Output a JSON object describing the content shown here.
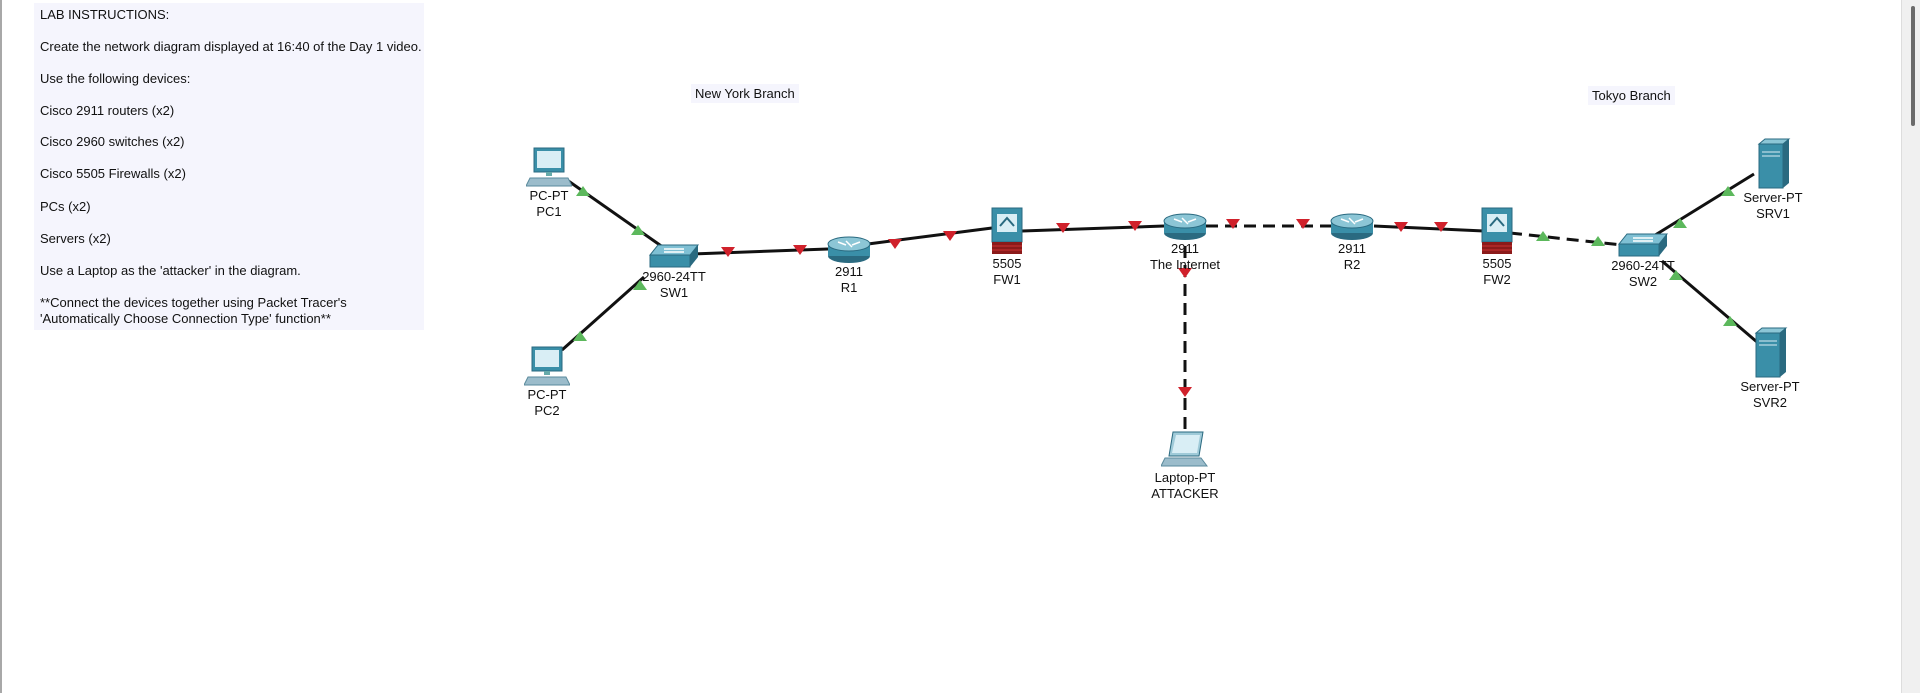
{
  "note": {
    "lines": [
      "LAB INSTRUCTIONS:",
      "Create the network diagram displayed at 16:40 of the Day 1 video.",
      "Use the following devices:",
      "Cisco 2911 routers (x2)",
      "Cisco 2960 switches (x2)",
      "Cisco 5505 Firewalls (x2)",
      "PCs (x2)",
      "Servers (x2)",
      "Use a Laptop as the 'attacker' in the diagram.",
      "**Connect the devices together using Packet Tracer's",
      "'Automatically Choose Connection Type' function**"
    ]
  },
  "branches": {
    "new_york": "New York Branch",
    "tokyo": "Tokyo Branch"
  },
  "devices": {
    "pc1": {
      "model": "PC-PT",
      "name": "PC1"
    },
    "pc2": {
      "model": "PC-PT",
      "name": "PC2"
    },
    "sw1": {
      "model": "2960-24TT",
      "name": "SW1"
    },
    "r1": {
      "model": "2911",
      "name": "R1"
    },
    "fw1": {
      "model": "5505",
      "name": "FW1"
    },
    "internet": {
      "model": "2911",
      "name": "The Internet"
    },
    "r2": {
      "model": "2911",
      "name": "R2"
    },
    "fw2": {
      "model": "5505",
      "name": "FW2"
    },
    "sw2": {
      "model": "2960-24TT",
      "name": "SW2"
    },
    "srv1": {
      "model": "Server-PT",
      "name": "SRV1"
    },
    "svr2": {
      "model": "Server-PT",
      "name": "SVR2"
    },
    "attacker": {
      "model": "Laptop-PT",
      "name": "ATTACKER"
    }
  },
  "links": [
    {
      "from": "pc1",
      "to": "sw1",
      "style": "solid",
      "status": "up"
    },
    {
      "from": "pc2",
      "to": "sw1",
      "style": "solid",
      "status": "up"
    },
    {
      "from": "sw1",
      "to": "r1",
      "style": "solid",
      "status": "down"
    },
    {
      "from": "r1",
      "to": "fw1",
      "style": "solid",
      "status": "down"
    },
    {
      "from": "fw1",
      "to": "internet",
      "style": "solid",
      "status": "down"
    },
    {
      "from": "internet",
      "to": "r2",
      "style": "dashed",
      "status": "down"
    },
    {
      "from": "r2",
      "to": "fw2",
      "style": "solid",
      "status": "down"
    },
    {
      "from": "fw2",
      "to": "sw2",
      "style": "dashed",
      "status": "up"
    },
    {
      "from": "sw2",
      "to": "srv1",
      "style": "solid",
      "status": "up"
    },
    {
      "from": "sw2",
      "to": "svr2",
      "style": "solid",
      "status": "up"
    },
    {
      "from": "internet",
      "to": "attacker",
      "style": "dashed",
      "status": "down"
    }
  ],
  "colors": {
    "link_up": "#5cb85c",
    "link_down": "#d0212b",
    "device": "#3a8fa8"
  }
}
